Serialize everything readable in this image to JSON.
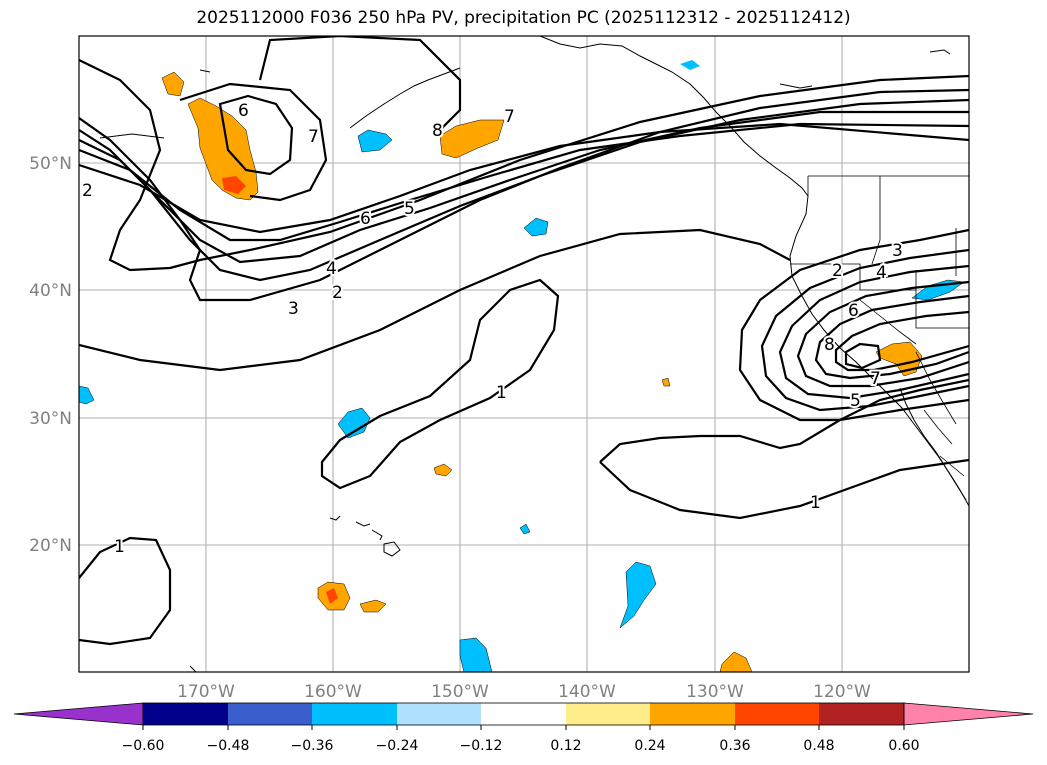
{
  "title": "2025112000 F036 250 hPa PV, precipitation PC (2025112312 - 2025112412)",
  "map": {
    "extent": {
      "lon_min": -180,
      "lon_max": -110,
      "lat_min": 10,
      "lat_max": 60
    },
    "gridlines": true,
    "lat_ticks": [
      {
        "lat": 50,
        "label": "50°N"
      },
      {
        "lat": 40,
        "label": "40°N"
      },
      {
        "lat": 30,
        "label": "30°N"
      },
      {
        "lat": 20,
        "label": "20°N"
      }
    ],
    "lon_ticks": [
      {
        "lon": -170,
        "label": "170°W"
      },
      {
        "lon": -160,
        "label": "160°W"
      },
      {
        "lon": -150,
        "label": "150°W"
      },
      {
        "lon": -140,
        "label": "140°W"
      },
      {
        "lon": -130,
        "label": "130°W"
      },
      {
        "lon": -120,
        "label": "120°W"
      }
    ],
    "pv_contour_labels": [
      "6",
      "7",
      "8",
      "7",
      "2",
      "6",
      "5",
      "4",
      "3",
      "2",
      "1",
      "1",
      "1",
      "2",
      "3",
      "4",
      "6",
      "8",
      "7",
      "5"
    ]
  },
  "colorbar": {
    "colors": [
      "#9932cc",
      "#00008b",
      "#3a5fcd",
      "#00bfff",
      "#b0e2ff",
      "#ffffff",
      "#ffec8b",
      "#ffa500",
      "#ff4500",
      "#b22222",
      "#ff82ab"
    ],
    "ticks": [
      "−0.60",
      "−0.48",
      "−0.36",
      "−0.24",
      "−0.12",
      "0.12",
      "0.24",
      "0.36",
      "0.48",
      "0.60"
    ],
    "extend": "both"
  }
}
